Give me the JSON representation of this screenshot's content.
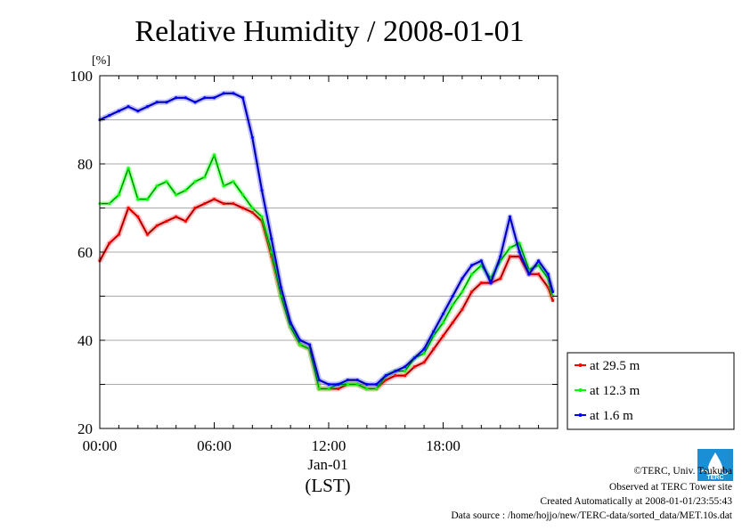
{
  "chart_data": {
    "type": "line",
    "title": "Relative Humidity / 2008-01-01",
    "y_unit": "[%]",
    "ylim": [
      20,
      100
    ],
    "y_ticks": [
      "20",
      "40",
      "60",
      "80",
      "100"
    ],
    "xlim": [
      0,
      23.75
    ],
    "x_tick_labels": [
      "00:00",
      "06:00",
      "12:00",
      "18:00"
    ],
    "x_date_label": "Jan-01",
    "x_axis_label": "(LST)",
    "grid": true,
    "legend_position": "right",
    "x": [
      0,
      0.5,
      1,
      1.5,
      2,
      2.5,
      3,
      3.5,
      4,
      4.5,
      5,
      5.5,
      6,
      6.5,
      7,
      7.5,
      8,
      8.5,
      9,
      9.5,
      10,
      10.5,
      11,
      11.5,
      12,
      12.5,
      13,
      13.5,
      14,
      14.5,
      15,
      15.5,
      16,
      16.5,
      17,
      17.5,
      18,
      18.5,
      19,
      19.5,
      20,
      20.5,
      21,
      21.5,
      22,
      22.5,
      23,
      23.5,
      23.75
    ],
    "series": [
      {
        "name": "at 29.5 m",
        "color": "#ff0000",
        "values": [
          58,
          62,
          64,
          70,
          68,
          64,
          66,
          67,
          68,
          67,
          70,
          71,
          72,
          71,
          71,
          70,
          69,
          67,
          59,
          50,
          43,
          39,
          38,
          29,
          29,
          29,
          30,
          30,
          29,
          29,
          31,
          32,
          32,
          34,
          35,
          38,
          41,
          44,
          47,
          51,
          53,
          53,
          54,
          59,
          59,
          55,
          55,
          52,
          49
        ]
      },
      {
        "name": "at 12.3 m",
        "color": "#00ff00",
        "values": [
          71,
          71,
          73,
          79,
          72,
          72,
          75,
          76,
          73,
          74,
          76,
          77,
          82,
          75,
          76,
          73,
          70,
          68,
          60,
          50,
          43,
          39,
          38,
          29,
          29,
          30,
          30,
          30,
          29,
          29,
          32,
          33,
          33,
          36,
          37,
          41,
          44,
          48,
          51,
          55,
          57,
          54,
          58,
          61,
          62,
          56,
          57,
          54,
          50
        ]
      },
      {
        "name": "at 1.6 m",
        "color": "#0000ff",
        "values": [
          90,
          91,
          92,
          93,
          92,
          93,
          94,
          94,
          95,
          95,
          94,
          95,
          95,
          96,
          96,
          95,
          86,
          74,
          63,
          52,
          44,
          40,
          39,
          31,
          30,
          30,
          31,
          31,
          30,
          30,
          32,
          33,
          34,
          36,
          38,
          42,
          46,
          50,
          54,
          57,
          58,
          53,
          59,
          68,
          60,
          55,
          58,
          55,
          51
        ]
      }
    ]
  },
  "footer": {
    "copyright": "©TERC, Univ. Tsukuba",
    "observed": "Observed at TERC Tower site",
    "created": "Created Automatically at 2008-01-01/23:55:43",
    "source": "Data source : /home/hojjo/new/TERC-data/sorted_data/MET.10s.dat"
  },
  "logo": {
    "text": "TERC"
  }
}
